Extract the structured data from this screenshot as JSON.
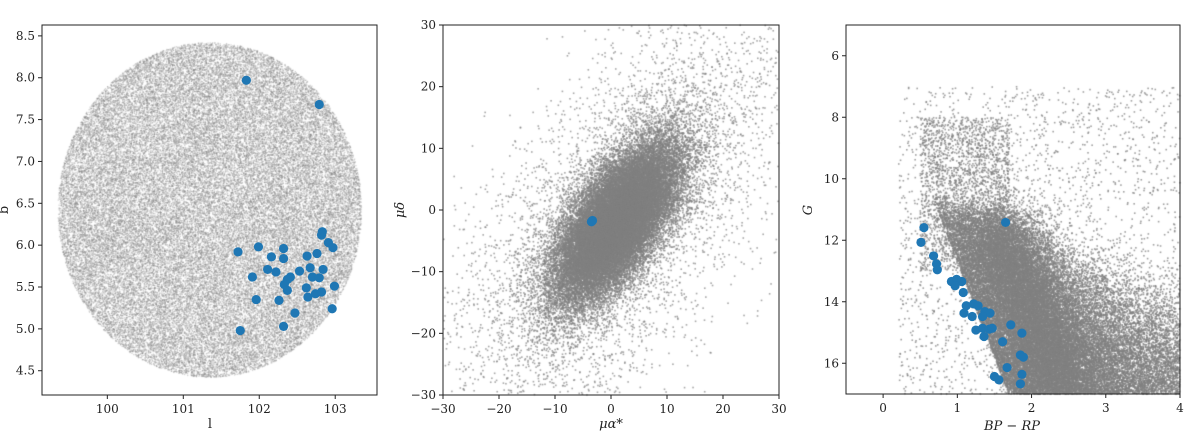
{
  "chart_data": [
    {
      "type": "scatter",
      "xlabel": "l",
      "ylabel": "b",
      "xlim": [
        99.14,
        103.55
      ],
      "ylim": [
        4.21,
        8.63
      ],
      "xticks": [
        "100",
        "101",
        "102",
        "103"
      ],
      "yticks": [
        "4.5",
        "5.0",
        "5.5",
        "6.0",
        "6.5",
        "7.0",
        "7.5",
        "8.0",
        "8.5"
      ],
      "grid": false,
      "colors": {
        "field": "#808080",
        "members": "#1f77b4"
      },
      "field_region": {
        "shape": "circle",
        "center": [
          101.35,
          6.42
        ],
        "radius": 2.0
      },
      "members": {
        "x": [
          101.83,
          102.79,
          102.83,
          102.82,
          102.91,
          102.97,
          101.72,
          101.99,
          102.32,
          102.16,
          102.32,
          102.63,
          102.76,
          102.11,
          102.22,
          102.53,
          102.67,
          102.84,
          101.91,
          102.41,
          102.37,
          102.7,
          102.79,
          102.33,
          102.62,
          102.99,
          102.37,
          102.64,
          102.74,
          102.82,
          101.96,
          102.26,
          102.96,
          102.47,
          101.75,
          102.32
        ],
        "y": [
          7.97,
          7.68,
          6.16,
          6.12,
          6.03,
          5.97,
          5.92,
          5.98,
          5.96,
          5.86,
          5.84,
          5.87,
          5.9,
          5.71,
          5.68,
          5.69,
          5.73,
          5.71,
          5.62,
          5.62,
          5.59,
          5.62,
          5.61,
          5.53,
          5.49,
          5.51,
          5.46,
          5.38,
          5.42,
          5.44,
          5.35,
          5.34,
          5.24,
          5.19,
          4.98,
          5.03
        ]
      }
    },
    {
      "type": "scatter",
      "xlabel": "μα*",
      "ylabel": "μδ",
      "xlim": [
        -30,
        30
      ],
      "ylim": [
        -30,
        30
      ],
      "xticks": [
        "−30",
        "−20",
        "−10",
        "0",
        "10",
        "20",
        "30"
      ],
      "yticks": [
        "−30",
        "−20",
        "−10",
        "0",
        "10",
        "20",
        "30"
      ],
      "grid": false,
      "colors": {
        "field": "#808080",
        "members": "#1f77b4"
      },
      "members": {
        "x": [
          -3.4,
          -3.3,
          -3.5
        ],
        "y": [
          -1.8,
          -1.7,
          -1.9
        ]
      }
    },
    {
      "type": "scatter",
      "xlabel": "BP − RP",
      "ylabel": "G",
      "xlim": [
        -0.5,
        4
      ],
      "ylim": [
        17,
        5
      ],
      "y_inverted": true,
      "xticks": [
        "0",
        "1",
        "2",
        "3",
        "4"
      ],
      "yticks": [
        "6",
        "8",
        "10",
        "12",
        "14",
        "16"
      ],
      "grid": false,
      "colors": {
        "field": "#808080",
        "members": "#1f77b4"
      },
      "members": {
        "x": [
          0.55,
          0.51,
          0.68,
          0.72,
          0.73,
          0.92,
          0.99,
          1.06,
          0.97,
          1.08,
          1.12,
          1.22,
          1.28,
          1.09,
          1.2,
          1.37,
          1.44,
          1.34,
          1.25,
          1.34,
          1.43,
          1.36,
          1.47,
          1.72,
          1.87,
          1.61,
          1.85,
          1.89,
          1.67,
          1.87,
          1.5,
          1.56,
          1.85,
          1.65
        ],
        "y": [
          11.59,
          12.07,
          12.51,
          12.77,
          12.96,
          13.34,
          13.27,
          13.34,
          13.48,
          13.7,
          14.13,
          14.07,
          14.13,
          14.37,
          14.48,
          14.32,
          14.37,
          14.48,
          14.92,
          14.86,
          14.89,
          15.13,
          14.86,
          14.75,
          15.02,
          15.3,
          15.73,
          15.8,
          16.14,
          16.36,
          16.43,
          16.54,
          16.67,
          11.42
        ]
      }
    }
  ]
}
